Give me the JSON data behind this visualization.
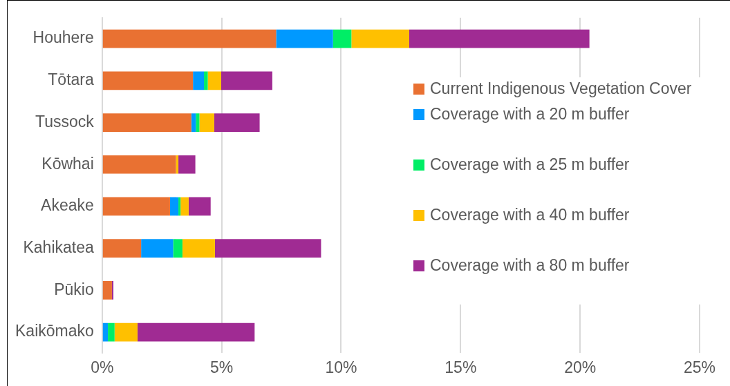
{
  "chart_data": {
    "type": "bar",
    "orientation": "horizontal",
    "stacked": true,
    "categories": [
      "Houhere",
      "Tōtara",
      "Tussock",
      "Kōwhai",
      "Akeake",
      "Kahikatea",
      "Pūkio",
      "Kaikōmako"
    ],
    "series": [
      {
        "name": "Current Indigenous Vegetation Cover",
        "color": "#e97132",
        "values": [
          7.28,
          3.8,
          3.73,
          3.09,
          2.84,
          1.63,
          0.41,
          0
        ]
      },
      {
        "name": "Coverage with a 20 m buffer",
        "color": "#0099ff",
        "values": [
          2.38,
          0.46,
          0.19,
          0,
          0.35,
          1.34,
          0,
          0.24
        ]
      },
      {
        "name": "Coverage with a 25 m buffer",
        "color": "#00ee66",
        "values": [
          0.77,
          0.16,
          0.15,
          0,
          0.09,
          0.39,
          0,
          0.28
        ]
      },
      {
        "name": "Coverage with a 40 m buffer",
        "color": "#ffc000",
        "values": [
          2.42,
          0.56,
          0.62,
          0.1,
          0.34,
          1.36,
          0,
          0.96
        ]
      },
      {
        "name": "Coverage with a 80 m buffer",
        "color": "#a02b93",
        "values": [
          7.54,
          2.14,
          1.9,
          0.71,
          0.92,
          4.44,
          0.06,
          4.9
        ]
      }
    ],
    "xlim": [
      0,
      25
    ],
    "xticks": [
      {
        "value": 0,
        "label": "0%"
      },
      {
        "value": 5,
        "label": "5%"
      },
      {
        "value": 10,
        "label": "10%"
      },
      {
        "value": 15,
        "label": "15%"
      },
      {
        "value": 20,
        "label": "20%"
      },
      {
        "value": 25,
        "label": "25%"
      }
    ],
    "grid": "x",
    "legend": "right"
  }
}
